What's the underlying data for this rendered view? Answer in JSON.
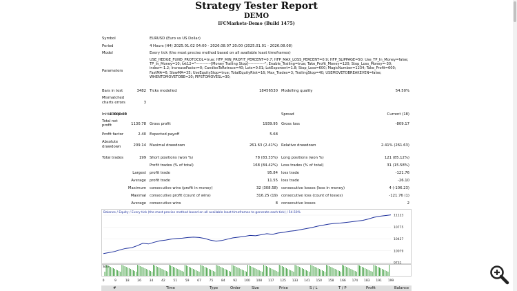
{
  "title": "Strategy Tester Report",
  "subtitle": "DEMO",
  "server": "IFCMarkets-Demo (Build 1475)",
  "symbol": {
    "label": "Symbol",
    "value": "EURUSD (Euro vs US Dollar)"
  },
  "period": {
    "label": "Period",
    "value": "4 Hours (H4) 2025.01.02 04:00 - 2026.08.07 20:00 (2025.01.01 - 2026.08.08)"
  },
  "model": {
    "label": "Model",
    "value": "Every tick (the most precise method based on all available least timeframes)"
  },
  "parameters": {
    "label": "Parameters",
    "value": "USE_HEDGE_FUND_PROTOCOL=true; HFP_MIN_PROFIT_PERCENT=0.7; HFP_MAX_LOSS_PERCENT=0.9; HFP_SLIPPAGE=50; Use_TP_In_Money=false; TP_In_Money=10; txt12=\"------------[Money Trailing Stop]-------------\"; Enable_Trailing=true; Take_Profit_Money=120; Stop_Loss_Money=-30; index=-1.2; IncreaseFactor=0; CandlesToRetrace=40; Lots=0.01; LotExponent=1.8; Stop_Loss=600; MagicNumber=1234; Take_Profit=600; FastMA=6; SlowMA=35; UseEquityStop=true; TotalEquityRisk=16; Max_Trades=3; TrailingStop=40; USEMOVETOBREAKEVEN=false; WHENTOMOVETOBE=20; PIPSTOMOVESL=30;"
  },
  "bars": {
    "label": "Bars in test",
    "value": "3482",
    "ticks_label": "Ticks modelled",
    "ticks": "18456530",
    "mq_label": "Modelling quality",
    "mq": "54.50%"
  },
  "mismatched": {
    "label1": "Mismatched",
    "label2": "charts errors",
    "value": "3"
  },
  "deposit": {
    "label": "Initial deposit",
    "value": "10000.00",
    "spread_label": "Spread",
    "spread": "Current (18)"
  },
  "netprofit": {
    "label1": "Total net",
    "label2": "profit",
    "value": "1130.78",
    "gp_label": "Gross profit",
    "gp": "1939.95",
    "gl_label": "Gross loss",
    "gl": "-809.17"
  },
  "pf": {
    "label": "Profit factor",
    "value": "2.40",
    "ep_label": "Expected payoff",
    "ep": "5.68"
  },
  "dd": {
    "label1": "Absolute",
    "label2": "drawdown",
    "value": "209.14",
    "md_label": "Maximal drawdown",
    "md": "261.63 (2.41%)",
    "rd_label": "Relative drawdown",
    "rd": "2.41% (261.63)"
  },
  "trades": {
    "label": "Total trades",
    "value": "199",
    "sp_label": "Short positions (won %)",
    "sp": "78 (83.33%)",
    "lp_label": "Long positions (won %)",
    "lp": "121 (85.12%)"
  },
  "pt": {
    "label": "Profit trades (% of total)",
    "value": "168 (84.42%)",
    "lt_label": "Loss trades (% of total)",
    "lt": "31 (15.58%)"
  },
  "largest": {
    "label": "Largest",
    "pl": "profit trade",
    "pv": "95.84",
    "ll": "loss trade",
    "lv": "-121.76"
  },
  "average": {
    "label": "Average",
    "pl": "profit trade",
    "pv": "11.55",
    "ll": "loss trade",
    "lv": "-26.10"
  },
  "maximum": {
    "label": "Maximum",
    "pl": "consecutive wins (profit in money)",
    "pv": "32 (308.58)",
    "ll": "consecutive losses (loss in money)",
    "lv": "4 (-106.23)"
  },
  "maximal": {
    "label": "Maximal",
    "pl": "consecutive profit (count of wins)",
    "pv": "316.25 (19)",
    "ll": "consecutive loss (count of losses)",
    "lv": "-121.76 (1)"
  },
  "average2": {
    "label": "Average",
    "pl": "consecutive wins",
    "pv": "8",
    "ll": "consecutive losses",
    "lv": "2"
  },
  "chart_data": {
    "type": "line",
    "title": "Balance / Equity / Every tick (the most precise method based on all available least timeframes to generate each tick) / 54.50%",
    "y_ticks": [
      "11123",
      "10775",
      "10427",
      "10079",
      "9731"
    ],
    "x_ticks": [
      "0",
      "9",
      "18",
      "26",
      "34",
      "42",
      "51",
      "59",
      "67",
      "75",
      "84",
      "92",
      "100",
      "108",
      "117",
      "125",
      "133",
      "141",
      "150",
      "158",
      "166",
      "174",
      "183",
      "191",
      "199"
    ],
    "ylim": [
      9731,
      11123
    ],
    "series": [
      {
        "name": "Balance",
        "color": "#1c2f9c",
        "values": [
          10000,
          10030,
          10060,
          10110,
          10150,
          10170,
          10230,
          10300,
          10280,
          10330,
          10370,
          10390,
          10420,
          10440,
          10450,
          10470,
          10480,
          10470,
          10440,
          10390,
          10360,
          10380,
          10420,
          10460,
          10480,
          10500,
          10530,
          10520,
          10550,
          10580,
          10560,
          10600,
          10620,
          10650,
          10670,
          10700,
          10730,
          10760,
          10800,
          10830,
          10860,
          10880,
          10890,
          10910,
          10930,
          10950,
          10970,
          11010,
          11060,
          11090,
          11110,
          11131
        ]
      }
    ],
    "vol_label": "Size"
  },
  "table_head": [
    "#",
    "Time",
    "Type",
    "Order",
    "Size",
    "Price",
    "S / L",
    "T / P",
    "Profit",
    "Balance"
  ]
}
